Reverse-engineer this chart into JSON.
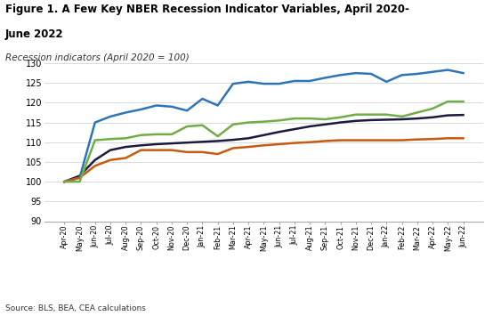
{
  "title_line1": "Figure 1. A Few Key NBER Recession Indicator Variables, April 2020-",
  "title_line2": "June 2022",
  "subtitle": "Recession indicators (April 2020 = 100)",
  "source": "Source: BLS, BEA, CEA calculations",
  "ylim": [
    90,
    130
  ],
  "yticks": [
    90,
    95,
    100,
    105,
    110,
    115,
    120,
    125,
    130
  ],
  "x_labels": [
    "Apr-20",
    "May-20",
    "Jun-20",
    "Jul-20",
    "Aug-20",
    "Sep-20",
    "Oct-20",
    "Nov-20",
    "Dec-20",
    "Jan-21",
    "Feb-21",
    "Mar-21",
    "Apr-21",
    "May-21",
    "Jun-21",
    "Jul-21",
    "Aug-21",
    "Sep-21",
    "Oct-21",
    "Nov-21",
    "Dec-21",
    "Jan-22",
    "Feb-22",
    "Mar-22",
    "Apr-22",
    "May-22",
    "Jun-22"
  ],
  "nonfarm_payrolls": [
    100,
    101.5,
    105.5,
    108.0,
    108.8,
    109.2,
    109.5,
    109.7,
    109.9,
    110.1,
    110.3,
    110.6,
    111.0,
    111.8,
    112.6,
    113.3,
    114.0,
    114.5,
    115.0,
    115.4,
    115.6,
    115.7,
    115.8,
    116.0,
    116.3,
    116.8,
    116.9
  ],
  "real_personal_consumption": [
    100,
    101.0,
    115.0,
    116.5,
    117.5,
    118.3,
    119.3,
    119.0,
    118.0,
    121.0,
    119.3,
    124.8,
    125.3,
    124.8,
    124.8,
    125.5,
    125.5,
    126.3,
    127.0,
    127.5,
    127.3,
    125.3,
    127.0,
    127.3,
    127.8,
    128.3,
    127.5
  ],
  "real_income_less_transfers": [
    100,
    101.0,
    104.0,
    105.5,
    106.0,
    108.0,
    108.0,
    108.0,
    107.5,
    107.5,
    107.0,
    108.5,
    108.8,
    109.2,
    109.5,
    109.8,
    110.0,
    110.3,
    110.5,
    110.5,
    110.5,
    110.5,
    110.5,
    110.7,
    110.8,
    111.0,
    111.0
  ],
  "industrial_production": [
    100,
    100.0,
    110.5,
    110.8,
    111.0,
    111.8,
    112.0,
    112.0,
    114.0,
    114.3,
    111.5,
    114.5,
    115.0,
    115.2,
    115.5,
    116.0,
    116.0,
    115.8,
    116.3,
    117.0,
    117.0,
    117.0,
    116.5,
    117.5,
    118.5,
    120.3,
    120.3
  ],
  "nonfarm_color": "#1a1a3e",
  "consumption_color": "#2e75b6",
  "income_color": "#c55a11",
  "industrial_color": "#70ad47",
  "background_color": "#ffffff",
  "grid_color": "#d9d9d9"
}
